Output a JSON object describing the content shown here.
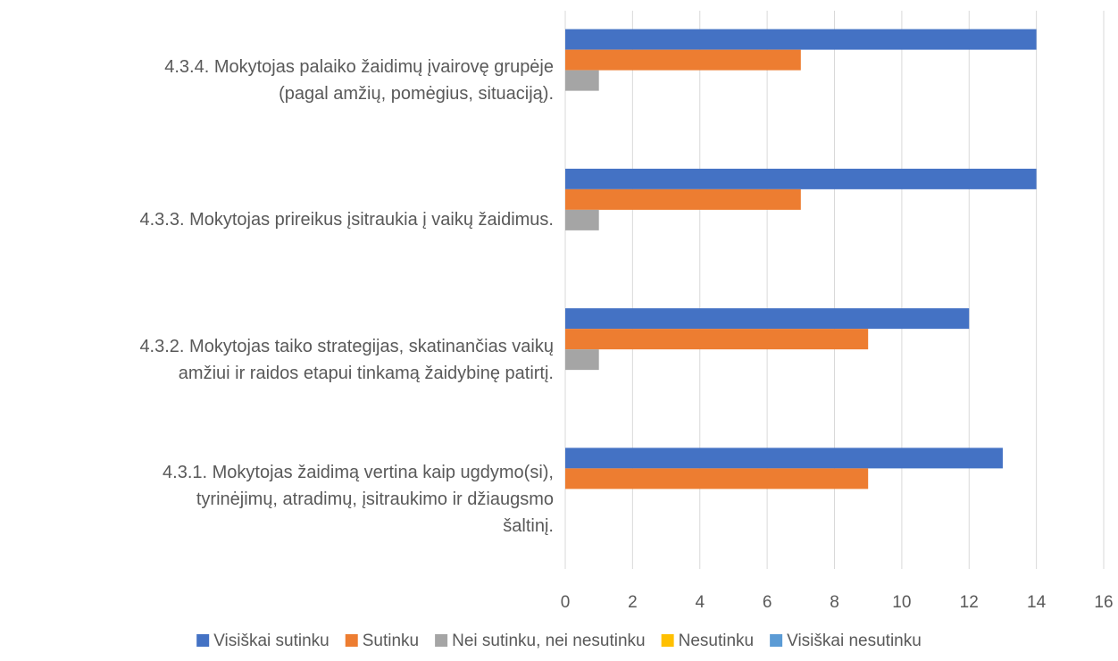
{
  "chart_data": {
    "type": "bar",
    "orientation": "horizontal",
    "categories": [
      "4.3.1. Mokytojas žaidimą vertina kaip ugdymo(si),\ntyrinėjimų, atradimų, įsitraukimo ir džiaugsmo\nšaltinį.",
      "4.3.2. Mokytojas taiko strategijas, skatinančias vaikų\namžiui ir raidos etapui tinkamą žaidybinę patirtį.",
      "4.3.3. Mokytojas prireikus įsitraukia į vaikų žaidimus.",
      "4.3.4. Mokytojas palaiko žaidimų įvairovę grupėje\n(pagal amžių, pomėgius, situaciją)."
    ],
    "series": [
      {
        "name": "Visiškai sutinku",
        "color": "#4472c4",
        "values": [
          13,
          12,
          14,
          14
        ]
      },
      {
        "name": "Sutinku",
        "color": "#ed7d31",
        "values": [
          9,
          9,
          7,
          7
        ]
      },
      {
        "name": "Nei sutinku, nei nesutinku",
        "color": "#a5a5a5",
        "values": [
          0,
          1,
          1,
          1
        ]
      },
      {
        "name": "Nesutinku",
        "color": "#ffc000",
        "values": [
          0,
          0,
          0,
          0
        ]
      },
      {
        "name": "Visiškai nesutinku",
        "color": "#5b9bd5",
        "values": [
          0,
          0,
          0,
          0
        ]
      }
    ],
    "xlim": [
      0,
      16
    ],
    "xticks": [
      0,
      2,
      4,
      6,
      8,
      10,
      12,
      14,
      16
    ],
    "grid": true,
    "legend": "bottom"
  }
}
